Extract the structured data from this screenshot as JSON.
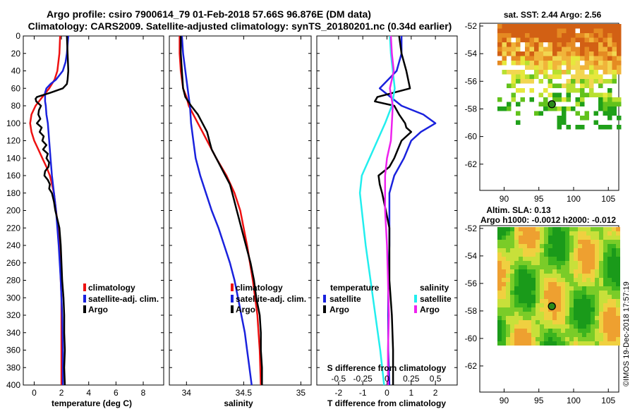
{
  "header": {
    "title_line1": "Argo profile: csiro 7900614_79 01-Feb-2018 57.66S 96.876E (DM data)",
    "title_line2": "Climatology: CARS2009. Satellite-adjusted climatology: synTS_20180201.nc (0.34d earlier)"
  },
  "colors": {
    "climatology": "#ee1111",
    "satellite": "#1a22dd",
    "argo": "#000000",
    "sal_satellite": "#22eeee",
    "sal_argo": "#ee22ee",
    "ocean": "#ffffff"
  },
  "chart_data": [
    {
      "type": "line",
      "name": "temperature",
      "xlabel": "temperature (deg C)",
      "ylabel": "",
      "xlim": [
        -0.8,
        9.5
      ],
      "ylim": [
        400,
        0
      ],
      "xticks": [
        "0",
        "2",
        "4",
        "6",
        "8"
      ],
      "yticks": [
        "0",
        "20",
        "40",
        "60",
        "80",
        "100",
        "120",
        "140",
        "160",
        "180",
        "200",
        "220",
        "240",
        "260",
        "280",
        "300",
        "320",
        "340",
        "360",
        "380",
        "400"
      ],
      "legend": [
        "climatology",
        "satellite-adj. clim.",
        "Argo"
      ],
      "series": [
        {
          "name": "climatology",
          "depth": [
            0,
            20,
            40,
            50,
            60,
            70,
            80,
            90,
            100,
            110,
            120,
            130,
            140,
            150,
            160,
            170,
            180,
            200,
            220,
            240,
            260,
            280,
            300,
            320,
            340,
            360,
            380,
            400
          ],
          "values": [
            1.9,
            1.85,
            1.7,
            1.5,
            1.1,
            0.6,
            0.1,
            -0.2,
            -0.3,
            -0.2,
            0,
            0.3,
            0.6,
            0.9,
            1.15,
            1.3,
            1.45,
            1.6,
            1.75,
            1.85,
            1.9,
            1.95,
            2.0,
            2.0,
            2.0,
            2.0,
            2.0,
            2.0
          ]
        },
        {
          "name": "satellite-adj. clim.",
          "depth": [
            0,
            10,
            20,
            30,
            40,
            50,
            55,
            60,
            65,
            70,
            75,
            80,
            90,
            100,
            120,
            140,
            160,
            180,
            200,
            240,
            280,
            320,
            360,
            400
          ],
          "values": [
            2.5,
            2.45,
            2.4,
            2.3,
            2.1,
            1.6,
            1.2,
            0.9,
            0.8,
            0.8,
            0.8,
            0.85,
            0.9,
            1.0,
            1.1,
            1.2,
            1.3,
            1.45,
            1.6,
            1.8,
            1.95,
            2.05,
            2.1,
            2.1
          ]
        },
        {
          "name": "Argo",
          "depth": [
            0,
            20,
            40,
            50,
            55,
            60,
            65,
            70,
            72,
            75,
            80,
            85,
            90,
            95,
            100,
            105,
            110,
            115,
            120,
            125,
            130,
            135,
            140,
            145,
            150,
            155,
            160,
            165,
            170,
            175,
            180,
            190,
            200,
            210,
            220,
            240,
            260,
            280,
            300,
            320,
            340,
            360,
            380,
            400
          ],
          "values": [
            2.4,
            2.45,
            2.5,
            2.45,
            2.4,
            2.1,
            1.2,
            0.2,
            0.1,
            0.15,
            0.5,
            0.35,
            0.3,
            0.45,
            0.2,
            0.55,
            0.4,
            0.7,
            0.6,
            0.9,
            0.65,
            1.0,
            0.9,
            1.1,
            1.05,
            0.8,
            0.75,
            1.0,
            1.15,
            1.1,
            1.3,
            1.45,
            1.55,
            1.7,
            1.85,
            1.95,
            2.0,
            2.05,
            2.15,
            2.2,
            2.2,
            2.25,
            2.2,
            2.25
          ]
        }
      ]
    },
    {
      "type": "line",
      "name": "salinity",
      "xlabel": "salinity",
      "ylabel": "",
      "xlim": [
        33.85,
        35.09
      ],
      "ylim": [
        400,
        0
      ],
      "xticks": [
        "34",
        "34.5",
        "35"
      ],
      "legend": [
        "climatology",
        "satellite-adj. clim.",
        "Argo"
      ],
      "series": [
        {
          "name": "climatology",
          "depth": [
            0,
            20,
            40,
            60,
            70,
            80,
            90,
            100,
            110,
            120,
            140,
            160,
            180,
            200,
            240,
            280,
            320,
            360,
            400
          ],
          "values": [
            33.94,
            33.94,
            33.95,
            33.97,
            34.0,
            34.02,
            34.06,
            34.1,
            34.14,
            34.18,
            34.26,
            34.35,
            34.42,
            34.47,
            34.53,
            34.58,
            34.62,
            34.64,
            34.65
          ]
        },
        {
          "name": "satellite-adj. clim.",
          "depth": [
            0,
            20,
            40,
            60,
            80,
            100,
            120,
            140,
            160,
            180,
            200,
            220,
            240,
            260,
            280,
            300,
            320,
            340,
            360,
            380,
            400
          ],
          "values": [
            33.96,
            33.97,
            33.99,
            34.01,
            34.03,
            34.04,
            34.06,
            34.08,
            34.12,
            34.17,
            34.22,
            34.28,
            34.33,
            34.38,
            34.42,
            34.45,
            34.48,
            34.51,
            34.53,
            34.55,
            34.57
          ]
        },
        {
          "name": "Argo",
          "depth": [
            0,
            20,
            40,
            60,
            70,
            80,
            90,
            100,
            110,
            120,
            130,
            140,
            150,
            160,
            170,
            180,
            190,
            200,
            210,
            220,
            240,
            260,
            280,
            300,
            320,
            340,
            360,
            380,
            400
          ],
          "values": [
            33.95,
            33.95,
            33.96,
            33.97,
            33.99,
            34.04,
            34.1,
            34.14,
            34.18,
            34.2,
            34.22,
            34.26,
            34.3,
            34.34,
            34.38,
            34.4,
            34.42,
            34.44,
            34.46,
            34.48,
            34.52,
            34.56,
            34.59,
            34.61,
            34.64,
            34.65,
            34.65,
            34.66,
            34.66
          ]
        }
      ]
    },
    {
      "type": "line",
      "name": "difference",
      "xlabel": "T difference from climatology",
      "xlabel_top": "S difference from climatology",
      "xlim": [
        -2.9,
        2.9
      ],
      "ylim": [
        400,
        0
      ],
      "xticks": [
        "-2",
        "-1",
        "0",
        "1",
        "2"
      ],
      "s_ticks": [
        "-0.5",
        "-0.25",
        "0",
        "0.25",
        "0.5"
      ],
      "legend_t_title": "temperature",
      "legend_s_title": "salinity",
      "legend_t": [
        "satellite",
        "Argo"
      ],
      "legend_s": [
        "satellite",
        "Argo"
      ],
      "series": [
        {
          "name": "T satellite",
          "depth": [
            0,
            20,
            40,
            60,
            80,
            90,
            100,
            110,
            120,
            140,
            160,
            180,
            200,
            240,
            280,
            320,
            360,
            400
          ],
          "values": [
            0.6,
            0.6,
            0.4,
            -0.3,
            0.6,
            1.5,
            2.0,
            1.4,
            1.0,
            0.7,
            0.3,
            0.1,
            0.1,
            0.1,
            0.05,
            0.05,
            0.05,
            0.1
          ]
        },
        {
          "name": "T Argo",
          "depth": [
            0,
            20,
            40,
            60,
            70,
            75,
            80,
            90,
            100,
            105,
            110,
            120,
            130,
            140,
            150,
            160,
            170,
            180,
            200,
            220,
            240,
            280,
            320,
            360,
            400
          ],
          "values": [
            0.5,
            0.6,
            0.8,
            0.95,
            -0.4,
            -0.5,
            0.3,
            0.5,
            0.75,
            0.8,
            1.0,
            0.6,
            0.45,
            0.3,
            0.1,
            -0.35,
            -0.3,
            -0.2,
            -0.05,
            0.1,
            0.1,
            0.1,
            0.2,
            0.25,
            0.25
          ]
        },
        {
          "name": "S satellite",
          "depth": [
            0,
            20,
            40,
            60,
            80,
            100,
            120,
            140,
            160,
            180,
            200,
            240,
            280,
            320,
            360,
            400
          ],
          "values": [
            0.03,
            0.04,
            0.06,
            0.08,
            0.05,
            -0.02,
            -0.1,
            -0.18,
            -0.26,
            -0.28,
            -0.26,
            -0.22,
            -0.17,
            -0.12,
            -0.07,
            -0.03
          ]
        },
        {
          "name": "S Argo",
          "depth": [
            0,
            20,
            40,
            60,
            80,
            100,
            120,
            140,
            160,
            180,
            200,
            240,
            280,
            320,
            360,
            400
          ],
          "values": [
            0.04,
            0.05,
            0.07,
            0.03,
            0.06,
            0.05,
            0.04,
            0.0,
            -0.02,
            -0.02,
            -0.02,
            0.0,
            0.01,
            0.02,
            0.01,
            0.01
          ]
        }
      ]
    }
  ],
  "maps": {
    "sst": {
      "title": "sat. SST: 2.44 Argo: 2.56",
      "lon_ticks": [
        "90",
        "95",
        "100",
        "105"
      ],
      "lat_ticks": [
        "-52",
        "-54",
        "-56",
        "-58",
        "-60",
        "-62"
      ],
      "lon_range": [
        86.5,
        106.5
      ],
      "lat_range": [
        -51.8,
        -63.9
      ],
      "profile_lon": 96.876,
      "profile_lat": -57.66
    },
    "sla": {
      "title": "Altim. SLA: 0.13",
      "subtitle": "Argo h1000: -0.0012 h2000: -0.012",
      "lon_ticks": [
        "90",
        "95",
        "100",
        "105"
      ],
      "lat_ticks": [
        "-52",
        "-54",
        "-56",
        "-58",
        "-60",
        "-62"
      ],
      "lon_range": [
        86.5,
        106.5
      ],
      "lat_range": [
        -51.8,
        -63.9
      ],
      "profile_lon": 96.876,
      "profile_lat": -57.66
    }
  },
  "credit": "©IMOS 19-Dec-2018 17:57:19"
}
